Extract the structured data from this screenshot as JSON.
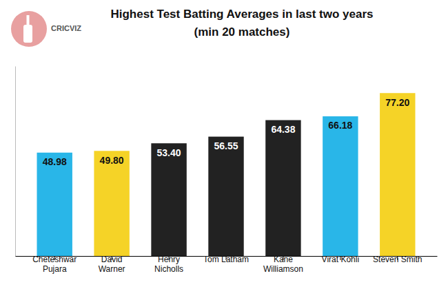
{
  "chart_data": {
    "type": "bar",
    "title": "Highest Test Batting Averages in last two years",
    "subtitle": "(min 20 matches)",
    "annotations": [
      "CRICVIZ"
    ],
    "categories": [
      "Cheteshwar\nPujara",
      "David\nWarner",
      "Henry\nNicholls",
      "Tom Latham",
      "Kane\nWilliamson",
      "Virat Kohli",
      "Steven Smith"
    ],
    "values": [
      48.98,
      49.8,
      53.4,
      56.55,
      64.38,
      66.18,
      77.2
    ],
    "value_labels": [
      "48.98",
      "49.80",
      "53.40",
      "56.55",
      "64.38",
      "66.18",
      "77.20"
    ],
    "colors": [
      "#29B6E8",
      "#F5D327",
      "#222222",
      "#222222",
      "#222222",
      "#29B6E8",
      "#F5D327"
    ],
    "ylim": [
      0,
      90
    ],
    "data_labels": true,
    "tick_labels": "x",
    "grid": false
  }
}
